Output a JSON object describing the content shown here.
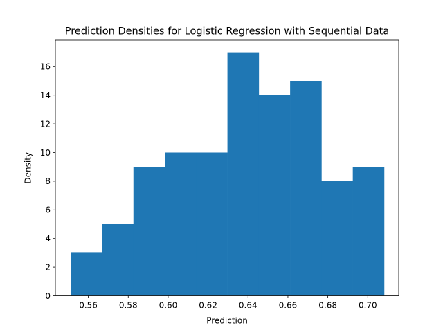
{
  "chart_data": {
    "type": "bar",
    "title": "Prediction Densities for Logistic Regression with Sequential Data",
    "xlabel": "Prediction",
    "ylabel": "Density",
    "xlim": [
      0.5435,
      0.7155
    ],
    "ylim": [
      0,
      17.85
    ],
    "xticks": [
      0.56,
      0.58,
      0.6,
      0.62,
      0.64,
      0.66,
      0.68,
      0.7
    ],
    "xtick_labels": [
      "0.56",
      "0.58",
      "0.60",
      "0.62",
      "0.64",
      "0.66",
      "0.68",
      "0.70"
    ],
    "yticks": [
      0,
      2,
      4,
      6,
      8,
      10,
      12,
      14,
      16
    ],
    "ytick_labels": [
      "0",
      "2",
      "4",
      "6",
      "8",
      "10",
      "12",
      "14",
      "16"
    ],
    "bin_edges": [
      0.5512,
      0.5669,
      0.5826,
      0.5983,
      0.614,
      0.6297,
      0.6454,
      0.6611,
      0.6768,
      0.6925,
      0.7082
    ],
    "values": [
      3,
      5,
      9,
      10,
      10,
      17,
      14,
      15,
      8,
      9
    ],
    "grid": false,
    "colors": {
      "bar": "#1f77b4",
      "axis": "#000000",
      "background": "#ffffff"
    }
  }
}
